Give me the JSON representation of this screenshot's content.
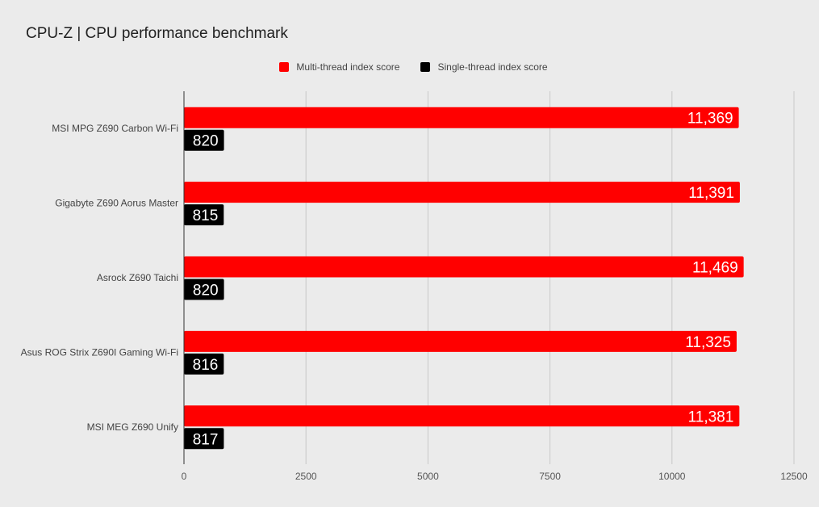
{
  "chart_data": {
    "type": "bar",
    "orientation": "horizontal",
    "title": "CPU-Z | CPU performance benchmark",
    "categories": [
      "MSI MPG Z690 Carbon Wi-Fi",
      "Gigabyte Z690 Aorus Master",
      "Asrock Z690 Taichi",
      "Asus ROG Strix Z690I Gaming Wi-Fi",
      "MSI MEG Z690 Unify"
    ],
    "series": [
      {
        "name": "Multi-thread index score",
        "color": "#ff0000",
        "values": [
          11369,
          11391,
          11469,
          11325,
          11381
        ],
        "labels": [
          "11,369",
          "11,391",
          "11,469",
          "11,325",
          "11,381"
        ]
      },
      {
        "name": "Single-thread index score",
        "color": "#000000",
        "values": [
          820,
          815,
          820,
          816,
          817
        ],
        "labels": [
          "820",
          "815",
          "820",
          "816",
          "817"
        ]
      }
    ],
    "xlim": [
      0,
      12500
    ],
    "xticks": [
      "0",
      "2500",
      "5000",
      "7500",
      "10000",
      "12500"
    ],
    "xtick_values": [
      0,
      2500,
      5000,
      7500,
      10000,
      12500
    ],
    "grid": true,
    "legend_position": "top"
  }
}
